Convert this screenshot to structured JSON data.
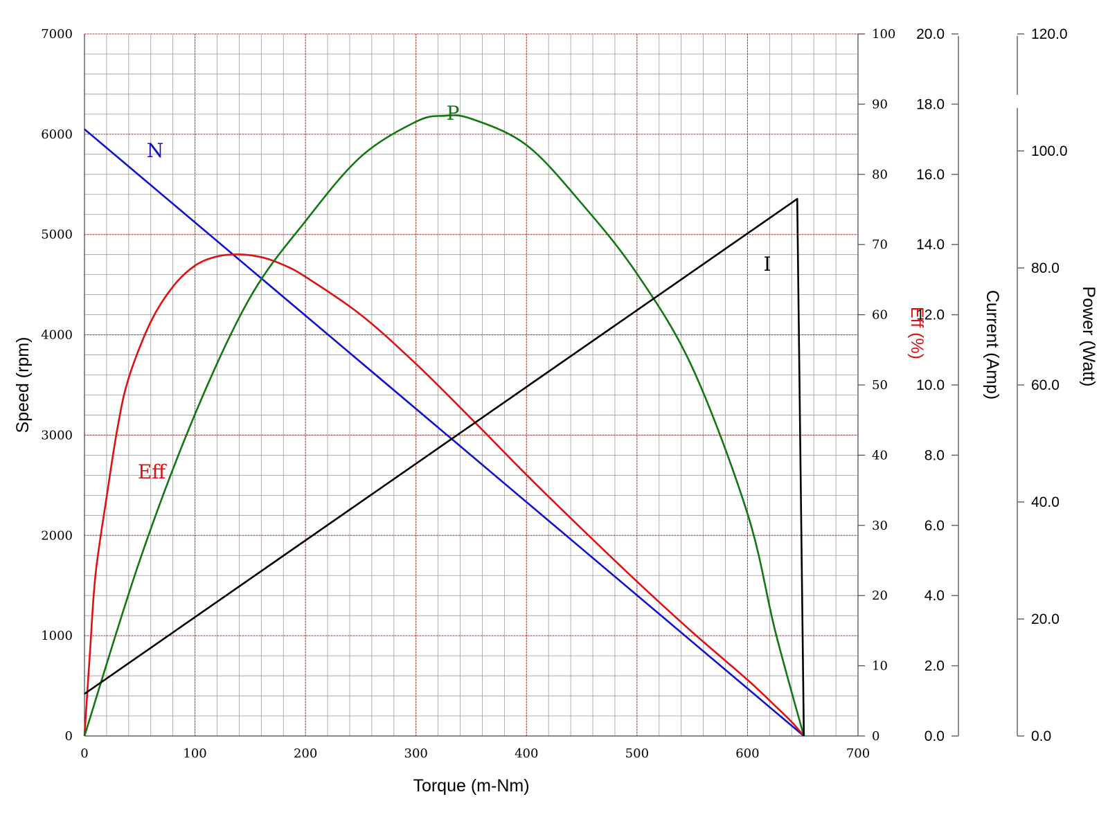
{
  "chart_data": {
    "type": "line",
    "xlabel": "Torque (m-Nm)",
    "xlim": [
      0,
      700
    ],
    "x_ticks": [
      "0",
      "100",
      "200",
      "300",
      "400",
      "500",
      "600",
      "700"
    ],
    "grid": true,
    "axes": {
      "speed": {
        "label": "Speed (rpm)",
        "range": [
          0,
          7000
        ],
        "ticks": [
          "0",
          "1000",
          "2000",
          "3000",
          "4000",
          "5000",
          "6000",
          "7000"
        ],
        "color": "#000000"
      },
      "eff": {
        "label": "Eff (%)",
        "range": [
          0,
          100
        ],
        "ticks": [
          "0",
          "10",
          "20",
          "30",
          "40",
          "50",
          "60",
          "70",
          "80",
          "90",
          "100"
        ],
        "color": "#dd1111"
      },
      "current": {
        "label": "Current (Amp)",
        "range": [
          0,
          20
        ],
        "ticks": [
          "0.0",
          "2.0",
          "4.0",
          "6.0",
          "8.0",
          "10.0",
          "12.0",
          "14.0",
          "16.0",
          "18.0",
          "20.0"
        ],
        "color": "#000000"
      },
      "power": {
        "label": "Power (Watt)",
        "range": [
          0,
          120
        ],
        "ticks": [
          "0.0",
          "20.0",
          "40.0",
          "60.0",
          "80.0",
          "100.0",
          "120.0"
        ],
        "color": "#000000"
      }
    },
    "series": [
      {
        "name": "N",
        "axis": "speed",
        "color": "#1111cc",
        "x": [
          0,
          651
        ],
        "y": [
          6050,
          0
        ]
      },
      {
        "name": "Eff",
        "axis": "eff",
        "color": "#dd1111",
        "x": [
          0,
          5,
          10,
          20,
          30,
          40,
          60,
          80,
          100,
          120,
          140,
          160,
          180,
          200,
          250,
          300,
          350,
          400,
          450,
          500,
          550,
          600,
          625,
          640,
          651
        ],
        "y": [
          0,
          12,
          23,
          34,
          44,
          51,
          59,
          64,
          67,
          68.3,
          68.6,
          68.2,
          67.1,
          65.4,
          60,
          53,
          45.2,
          37.2,
          29.5,
          22,
          14.8,
          8,
          4.3,
          2,
          0
        ]
      },
      {
        "name": "P",
        "axis": "power",
        "color": "#117711",
        "x": [
          0,
          50,
          100,
          150,
          200,
          250,
          300,
          325,
          350,
          400,
          450,
          500,
          550,
          600,
          625,
          651
        ],
        "y": [
          0,
          30,
          55,
          75,
          88,
          99,
          105,
          106,
          105.5,
          101,
          91,
          79,
          63,
          38,
          18,
          0
        ]
      },
      {
        "name": "I",
        "axis": "current",
        "color": "#000000",
        "x": [
          0,
          645,
          651
        ],
        "y": [
          1.2,
          15.3,
          0
        ]
      }
    ]
  }
}
